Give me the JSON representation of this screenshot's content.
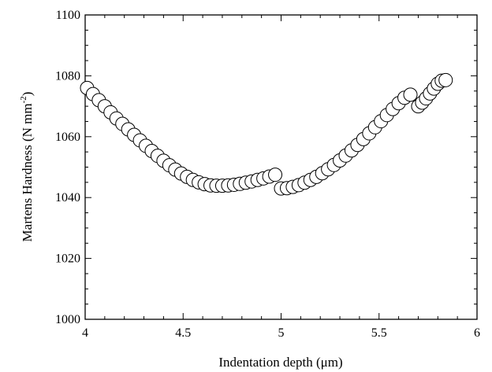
{
  "chart_data": {
    "type": "scatter",
    "xlabel": "Indentation depth (μm)",
    "ylabel_main": "Martens Hardness (N mm",
    "ylabel_sup": "-2",
    "ylabel_close": ")",
    "xlim": [
      4,
      6
    ],
    "ylim": [
      1000,
      1100
    ],
    "xticks": [
      4,
      4.5,
      5,
      5.5,
      6
    ],
    "yticks": [
      1000,
      1020,
      1040,
      1060,
      1080,
      1100
    ],
    "xtick_labels": [
      "4",
      "4.5",
      "5",
      "5.5",
      "6"
    ],
    "ytick_labels": [
      "1000",
      "1020",
      "1040",
      "1060",
      "1080",
      "1100"
    ],
    "grid": false,
    "marker": "open-circle",
    "series": [
      {
        "points": [
          [
            4.01,
            1076.0
          ],
          [
            4.04,
            1074.0
          ],
          [
            4.07,
            1072.0
          ],
          [
            4.1,
            1070.0
          ],
          [
            4.13,
            1068.0
          ],
          [
            4.16,
            1066.0
          ],
          [
            4.19,
            1064.2
          ],
          [
            4.22,
            1062.4
          ],
          [
            4.25,
            1060.6
          ],
          [
            4.28,
            1058.8
          ],
          [
            4.31,
            1057.0
          ],
          [
            4.34,
            1055.3
          ],
          [
            4.37,
            1053.7
          ],
          [
            4.4,
            1052.1
          ],
          [
            4.43,
            1050.6
          ],
          [
            4.46,
            1049.2
          ],
          [
            4.49,
            1047.9
          ],
          [
            4.52,
            1046.8
          ],
          [
            4.55,
            1045.8
          ],
          [
            4.58,
            1045.0
          ],
          [
            4.61,
            1044.4
          ],
          [
            4.64,
            1044.0
          ],
          [
            4.67,
            1043.9
          ],
          [
            4.7,
            1043.9
          ],
          [
            4.73,
            1044.0
          ],
          [
            4.76,
            1044.2
          ],
          [
            4.79,
            1044.5
          ],
          [
            4.82,
            1044.9
          ],
          [
            4.85,
            1045.3
          ],
          [
            4.88,
            1045.8
          ],
          [
            4.91,
            1046.3
          ],
          [
            4.94,
            1046.9
          ],
          [
            4.97,
            1047.5
          ],
          [
            5.0,
            1043.0
          ],
          [
            5.03,
            1043.1
          ],
          [
            5.06,
            1043.5
          ],
          [
            5.09,
            1044.1
          ],
          [
            5.12,
            1044.9
          ],
          [
            5.15,
            1045.8
          ],
          [
            5.18,
            1046.8
          ],
          [
            5.21,
            1048.0
          ],
          [
            5.24,
            1049.3
          ],
          [
            5.27,
            1050.7
          ],
          [
            5.3,
            1052.2
          ],
          [
            5.33,
            1053.8
          ],
          [
            5.36,
            1055.5
          ],
          [
            5.39,
            1057.3
          ],
          [
            5.42,
            1059.2
          ],
          [
            5.45,
            1061.1
          ],
          [
            5.48,
            1063.1
          ],
          [
            5.51,
            1065.1
          ],
          [
            5.54,
            1067.1
          ],
          [
            5.57,
            1069.1
          ],
          [
            5.6,
            1071.0
          ],
          [
            5.63,
            1072.8
          ],
          [
            5.66,
            1073.8
          ],
          [
            5.7,
            1070.0
          ],
          [
            5.72,
            1071.2
          ],
          [
            5.74,
            1072.6
          ],
          [
            5.76,
            1074.2
          ],
          [
            5.78,
            1075.8
          ],
          [
            5.8,
            1077.4
          ],
          [
            5.82,
            1078.4
          ],
          [
            5.84,
            1078.6
          ]
        ]
      }
    ]
  }
}
